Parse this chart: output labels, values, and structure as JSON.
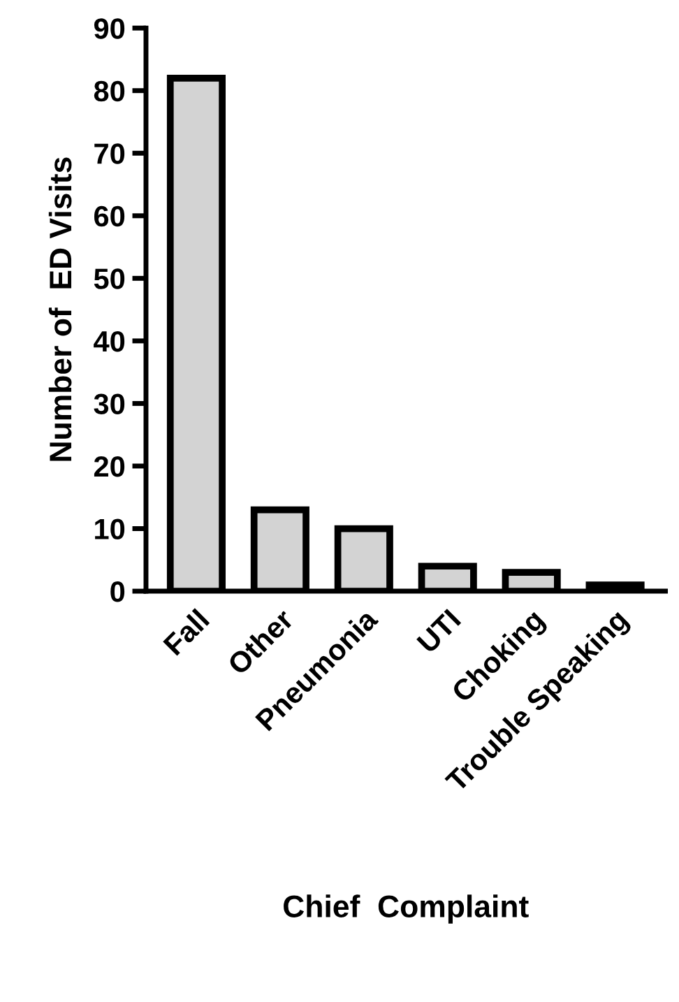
{
  "chart_data": {
    "type": "bar",
    "xlabel": "Chief  Complaint",
    "ylabel": "Number of  ED Visits",
    "categories": [
      "Fall",
      "Other",
      "Pneumonia",
      "UTI",
      "Choking",
      "Trouble Speaking"
    ],
    "values": [
      82,
      13,
      10,
      4,
      3,
      1
    ],
    "color": "#d3d3d3",
    "ylim": [
      0,
      90
    ],
    "yticks": [
      0,
      10,
      20,
      30,
      40,
      50,
      60,
      70,
      80,
      90
    ],
    "grid": false
  }
}
